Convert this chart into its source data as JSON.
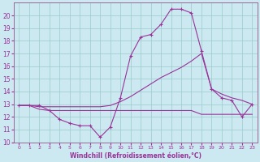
{
  "xlabel": "Windchill (Refroidissement éolien,°C)",
  "background_color": "#cce8f0",
  "grid_color": "#99cccc",
  "line_color": "#993399",
  "spine_color": "#996699",
  "xlim": [
    -0.5,
    23.5
  ],
  "ylim": [
    10,
    21
  ],
  "xticks": [
    0,
    1,
    2,
    3,
    4,
    5,
    6,
    7,
    8,
    9,
    10,
    11,
    12,
    13,
    14,
    15,
    16,
    17,
    18,
    19,
    20,
    21,
    22,
    23
  ],
  "yticks": [
    10,
    11,
    12,
    13,
    14,
    15,
    16,
    17,
    18,
    19,
    20
  ],
  "series1_x": [
    0,
    1,
    2,
    3,
    4,
    5,
    6,
    7,
    8,
    9,
    10,
    11,
    12,
    13,
    14,
    15,
    16,
    17,
    18,
    19,
    20,
    21,
    22,
    23
  ],
  "series1_y": [
    12.9,
    12.9,
    12.9,
    12.5,
    11.8,
    11.5,
    11.3,
    11.3,
    10.4,
    11.2,
    13.5,
    16.8,
    18.3,
    18.5,
    19.3,
    20.5,
    20.5,
    20.2,
    17.2,
    14.2,
    13.5,
    13.3,
    12.0,
    13.0
  ],
  "series2_x": [
    0,
    1,
    2,
    3,
    4,
    5,
    6,
    7,
    8,
    9,
    10,
    11,
    12,
    13,
    14,
    15,
    16,
    17,
    18,
    19,
    20,
    21,
    22,
    23
  ],
  "series2_y": [
    12.9,
    12.9,
    12.6,
    12.5,
    12.5,
    12.5,
    12.5,
    12.5,
    12.5,
    12.5,
    12.5,
    12.5,
    12.5,
    12.5,
    12.5,
    12.5,
    12.5,
    12.5,
    12.2,
    12.2,
    12.2,
    12.2,
    12.2,
    12.2
  ],
  "series3_x": [
    0,
    1,
    2,
    3,
    4,
    5,
    6,
    7,
    8,
    9,
    10,
    11,
    12,
    13,
    14,
    15,
    16,
    17,
    18,
    19,
    20,
    21,
    22,
    23
  ],
  "series3_y": [
    12.9,
    12.9,
    12.8,
    12.8,
    12.8,
    12.8,
    12.8,
    12.8,
    12.8,
    12.9,
    13.2,
    13.6,
    14.1,
    14.6,
    15.1,
    15.5,
    15.9,
    16.4,
    17.0,
    14.2,
    13.8,
    13.5,
    13.3,
    13.0
  ]
}
